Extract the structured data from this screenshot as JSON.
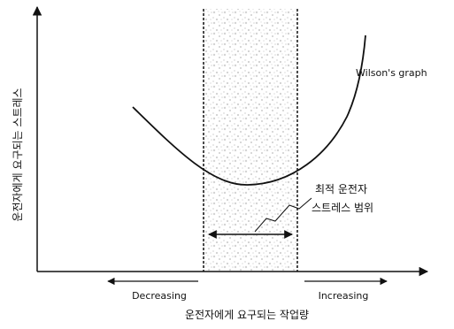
{
  "diagram": {
    "y_axis_label": "운전자에게 요구되는 스트레스",
    "x_axis_label": "운전자에게 요구되는 작업량",
    "curve_label": "Wilson's graph",
    "optimal_label_line1": "최적 운전자",
    "optimal_label_line2": "스트레스 범위",
    "left_arrow_label": "Decreasing",
    "right_arrow_label": "Increasing"
  }
}
